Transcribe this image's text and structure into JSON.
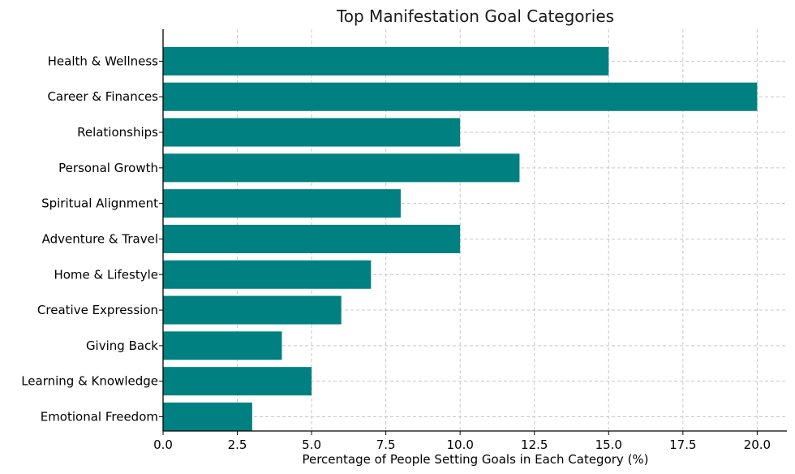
{
  "chart_data": {
    "type": "bar",
    "orientation": "horizontal",
    "title": "Top Manifestation Goal Categories",
    "xlabel": "Percentage of People Setting Goals in Each Category (%)",
    "ylabel": "",
    "categories": [
      "Health & Wellness",
      "Career & Finances",
      "Relationships",
      "Personal Growth",
      "Spiritual Alignment",
      "Adventure & Travel",
      "Home & Lifestyle",
      "Creative Expression",
      "Giving Back",
      "Learning & Knowledge",
      "Emotional Freedom"
    ],
    "values": [
      15,
      20,
      10,
      12,
      8,
      10,
      7,
      6,
      4,
      5,
      3
    ],
    "xlim": [
      0,
      21
    ],
    "xticks": [
      "0.0",
      "2.5",
      "5.0",
      "7.5",
      "10.0",
      "12.5",
      "15.0",
      "17.5",
      "20.0"
    ],
    "grid": true,
    "bar_color": "#008080"
  }
}
